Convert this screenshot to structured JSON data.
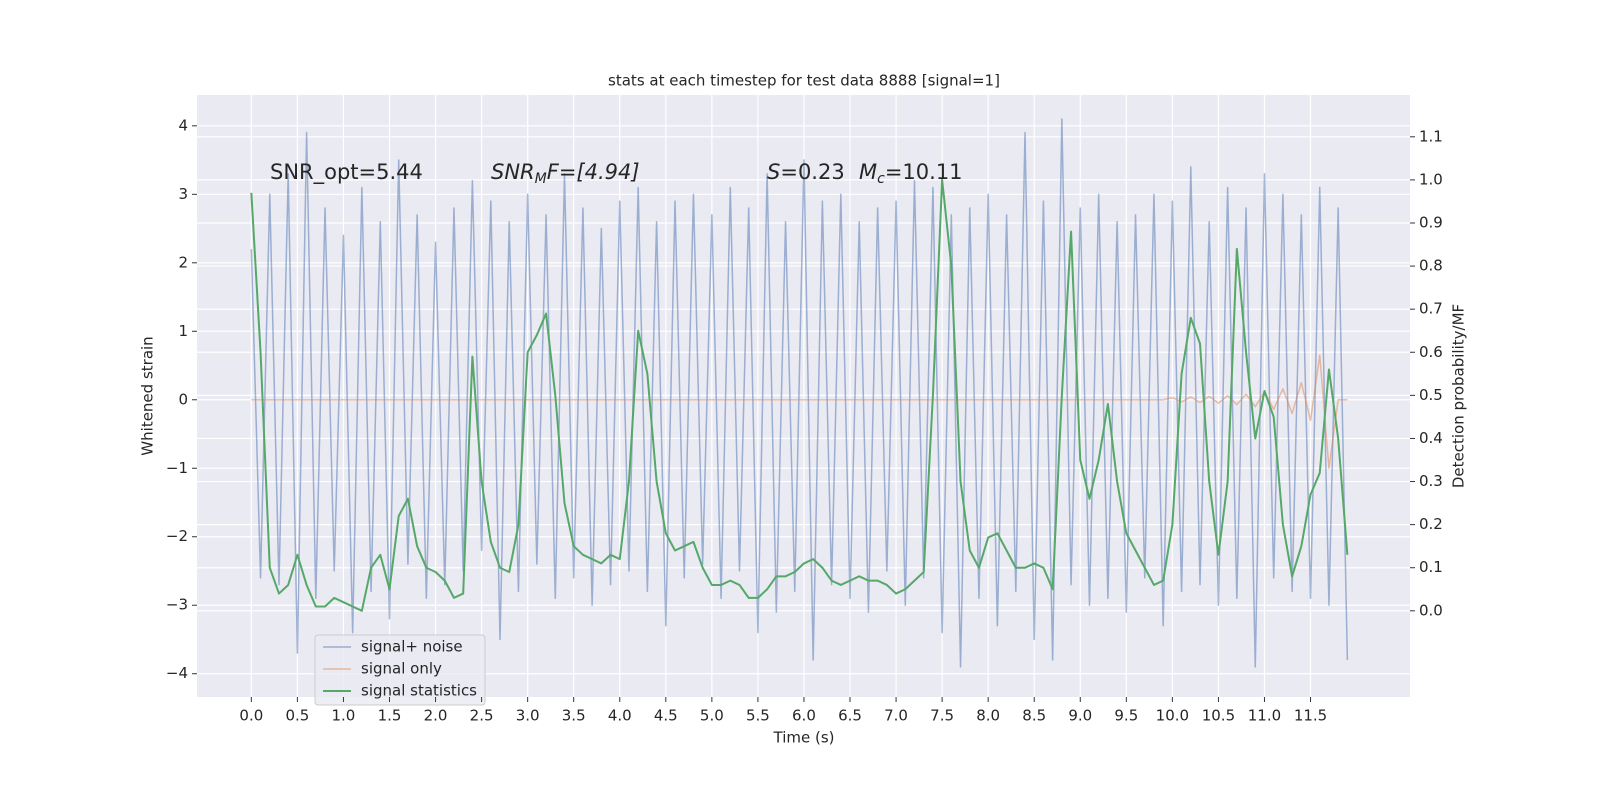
{
  "chart_data": {
    "type": "line",
    "title": "stats at each timestep for test data 8888 [signal=1]",
    "xlabel": "Time (s)",
    "ylabel": "Whitened strain",
    "y2label": "Detection probability/MF",
    "annotations": [
      "SNR_opt=5.44",
      [
        "SNR",
        "M",
        "F=[4.94]"
      ],
      [
        "S",
        "=0.23"
      ],
      [
        "M",
        "c",
        "=10.11"
      ]
    ],
    "grid": true,
    "legend": "lower left",
    "xlim": [
      -0.59,
      12.58
    ],
    "ylim": [
      -4.34,
      4.45
    ],
    "y2lim": [
      -0.2,
      1.197
    ],
    "xticks": [
      {
        "value": 0,
        "label": "0.0"
      },
      0.5,
      {
        "value": 1,
        "label": "1.0"
      },
      1.5,
      {
        "value": 2,
        "label": "2.0"
      },
      2.5,
      {
        "value": 3,
        "label": "3.0"
      },
      3.5,
      {
        "value": 4,
        "label": "4.0"
      },
      4.5,
      {
        "value": 5,
        "label": "5.0"
      },
      5.5,
      {
        "value": 6,
        "label": "6.0"
      },
      6.5,
      {
        "value": 7,
        "label": "7.0"
      },
      7.5,
      {
        "value": 8,
        "label": "8.0"
      },
      8.5,
      {
        "value": 9,
        "label": "9.0"
      },
      9.5,
      {
        "value": 10,
        "label": "10.0"
      },
      10.5,
      {
        "value": 11,
        "label": "11.0"
      },
      11.5
    ],
    "yticks": [
      4,
      3,
      2,
      1,
      0,
      {
        "value": -1,
        "label": "−1"
      },
      {
        "value": -2,
        "label": "−2"
      },
      {
        "value": -3,
        "label": "−3"
      },
      {
        "value": -4,
        "label": "−4"
      }
    ],
    "y2ticks": [
      {
        "value": 0,
        "label": "0.0"
      },
      0.1,
      0.2,
      0.3,
      0.4,
      0.5,
      0.6,
      0.7,
      0.8,
      0.9,
      {
        "value": 1,
        "label": "1.0"
      },
      1.1
    ],
    "x": [
      0.0,
      0.1,
      0.2,
      0.3,
      0.4,
      0.5,
      0.6,
      0.7,
      0.8,
      0.9,
      1.0,
      1.1,
      1.2,
      1.3,
      1.4,
      1.5,
      1.6,
      1.7,
      1.8,
      1.9,
      2.0,
      2.1,
      2.2,
      2.3,
      2.4,
      2.5,
      2.6,
      2.7,
      2.8,
      2.9,
      3.0,
      3.1,
      3.2,
      3.3,
      3.4,
      3.5,
      3.6,
      3.7,
      3.8,
      3.9,
      4.0,
      4.1,
      4.2,
      4.3,
      4.4,
      4.5,
      4.6,
      4.7,
      4.8,
      4.9,
      5.0,
      5.1,
      5.2,
      5.3,
      5.4,
      5.5,
      5.6,
      5.7,
      5.8,
      5.9,
      6.0,
      6.1,
      6.2,
      6.3,
      6.4,
      6.5,
      6.6,
      6.7,
      6.8,
      6.9,
      7.0,
      7.1,
      7.2,
      7.3,
      7.4,
      7.5,
      7.6,
      7.7,
      7.8,
      7.9,
      8.0,
      8.1,
      8.2,
      8.3,
      8.4,
      8.5,
      8.6,
      8.7,
      8.8,
      8.9,
      9.0,
      9.1,
      9.2,
      9.3,
      9.4,
      9.5,
      9.6,
      9.7,
      9.8,
      9.9,
      10.0,
      10.1,
      10.2,
      10.3,
      10.4,
      10.5,
      10.6,
      10.7,
      10.8,
      10.9,
      11.0,
      11.1,
      11.2,
      11.3,
      11.4,
      11.5,
      11.6,
      11.7,
      11.8,
      11.9
    ],
    "series": [
      {
        "name": "signal+ noise",
        "color": "#4c72b0",
        "values": [
          2.2,
          -2.6,
          3.0,
          -2.7,
          3.3,
          -3.7,
          3.9,
          -2.9,
          2.8,
          -2.5,
          2.4,
          -3.4,
          3.1,
          -2.8,
          2.6,
          -3.2,
          3.5,
          -2.4,
          2.7,
          -2.9,
          2.3,
          -2.7,
          2.8,
          -2.5,
          3.2,
          -2.2,
          2.9,
          -3.5,
          2.6,
          -2.8,
          3.0,
          -2.4,
          2.7,
          -2.9,
          3.3,
          -2.6,
          2.8,
          -3.0,
          2.5,
          -2.7,
          2.9,
          -2.5,
          3.1,
          -2.8,
          2.6,
          -3.3,
          2.9,
          -2.6,
          3.0,
          -2.4,
          2.7,
          -2.9,
          3.1,
          -2.5,
          2.8,
          -3.4,
          3.3,
          -3.1,
          2.6,
          -2.8,
          3.5,
          -3.8,
          2.9,
          -2.7,
          3.0,
          -2.9,
          2.6,
          -3.1,
          2.8,
          -2.5,
          2.9,
          -3.0,
          3.2,
          -2.6,
          3.1,
          -3.4,
          2.7,
          -3.9,
          2.8,
          -2.9,
          3.0,
          -3.3,
          2.7,
          -2.8,
          3.9,
          -3.5,
          2.9,
          -3.8,
          4.1,
          -2.7,
          2.8,
          -3.0,
          3.0,
          -2.9,
          2.6,
          -3.1,
          2.7,
          -2.6,
          3.0,
          -3.3,
          2.9,
          -2.8,
          3.4,
          -2.7,
          2.6,
          -3.0,
          3.1,
          -2.9,
          2.8,
          -3.9,
          3.3,
          -2.6,
          3.0,
          -2.8,
          2.7,
          -2.9,
          3.1,
          -3.0,
          2.8,
          -3.8
        ]
      },
      {
        "name": "signal only",
        "color": "#dd8452",
        "values": [
          0,
          0,
          0,
          0,
          0,
          0,
          0,
          0,
          0,
          0,
          0,
          0,
          0,
          0,
          0,
          0,
          0,
          0,
          0,
          0,
          0,
          0,
          0,
          0,
          0,
          0,
          0,
          0,
          0,
          0,
          0,
          0,
          0,
          0,
          0,
          0,
          0,
          0,
          0,
          0,
          0,
          0,
          0,
          0,
          0,
          0,
          0,
          0,
          0,
          0,
          0,
          0,
          0,
          0,
          0,
          0,
          0,
          0,
          0,
          0,
          0,
          0,
          0,
          0,
          0,
          0,
          0,
          0,
          0,
          0,
          0,
          0,
          0,
          0,
          0,
          0,
          0,
          0,
          0,
          0,
          0,
          0,
          0,
          0,
          0,
          0,
          0,
          0,
          0,
          0,
          0,
          0,
          0,
          0,
          0,
          0,
          0,
          0,
          0,
          0,
          0.03,
          -0.03,
          0.04,
          -0.04,
          0.05,
          -0.05,
          0.06,
          -0.07,
          0.08,
          -0.1,
          0.12,
          -0.14,
          0.16,
          -0.2,
          0.25,
          -0.3,
          0.65,
          -1.0,
          0,
          0
        ]
      },
      {
        "name": "signal statistics",
        "color": "#55a868",
        "axis": "y2",
        "values": [
          0.97,
          0.6,
          0.1,
          0.04,
          0.06,
          0.13,
          0.06,
          0.01,
          0.01,
          0.03,
          0.02,
          0.01,
          0.0,
          0.1,
          0.13,
          0.05,
          0.22,
          0.26,
          0.15,
          0.1,
          0.09,
          0.07,
          0.03,
          0.04,
          0.59,
          0.3,
          0.16,
          0.1,
          0.09,
          0.2,
          0.6,
          0.64,
          0.69,
          0.5,
          0.25,
          0.15,
          0.13,
          0.12,
          0.11,
          0.13,
          0.12,
          0.3,
          0.65,
          0.55,
          0.3,
          0.18,
          0.14,
          0.15,
          0.16,
          0.1,
          0.06,
          0.06,
          0.07,
          0.06,
          0.03,
          0.03,
          0.05,
          0.08,
          0.08,
          0.09,
          0.11,
          0.12,
          0.1,
          0.07,
          0.06,
          0.07,
          0.08,
          0.07,
          0.07,
          0.06,
          0.04,
          0.05,
          0.07,
          0.09,
          0.5,
          1.0,
          0.8,
          0.3,
          0.14,
          0.1,
          0.17,
          0.18,
          0.14,
          0.1,
          0.1,
          0.11,
          0.1,
          0.05,
          0.5,
          0.88,
          0.35,
          0.26,
          0.35,
          0.48,
          0.3,
          0.18,
          0.14,
          0.1,
          0.06,
          0.07,
          0.2,
          0.55,
          0.68,
          0.62,
          0.3,
          0.13,
          0.3,
          0.84,
          0.6,
          0.4,
          0.51,
          0.45,
          0.2,
          0.08,
          0.15,
          0.27,
          0.32,
          0.56,
          0.4,
          0.13
        ]
      }
    ]
  }
}
